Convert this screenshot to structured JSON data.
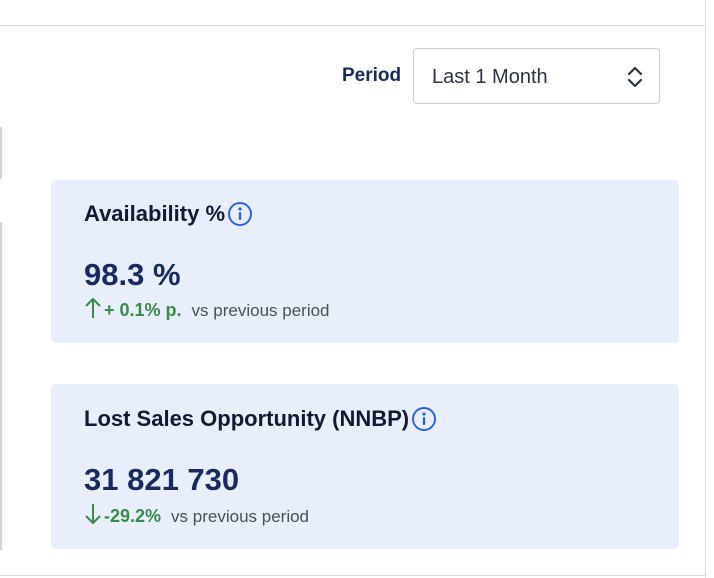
{
  "filter": {
    "period_label": "Period",
    "period_value": "Last 1 Month"
  },
  "cards": [
    {
      "title": "Availability %",
      "value": "98.3 %",
      "trend_direction": "up",
      "delta": "+ 0.1% p.",
      "comparison": "vs previous period"
    },
    {
      "title": "Lost Sales Opportunity (NNBP)",
      "value": "31 821 730",
      "trend_direction": "down",
      "delta": "-29.2%",
      "comparison": "vs previous period"
    }
  ],
  "colors": {
    "card_background": "#e8eefb",
    "info_icon": "#2a63e0",
    "trend_positive": "#3a8a4a",
    "title_navy": "#1b2a55"
  },
  "icons": {
    "info": "info-circle-icon",
    "select": "chevron-up-down-icon",
    "trend_up": "arrow-up-icon",
    "trend_down": "arrow-down-icon"
  }
}
